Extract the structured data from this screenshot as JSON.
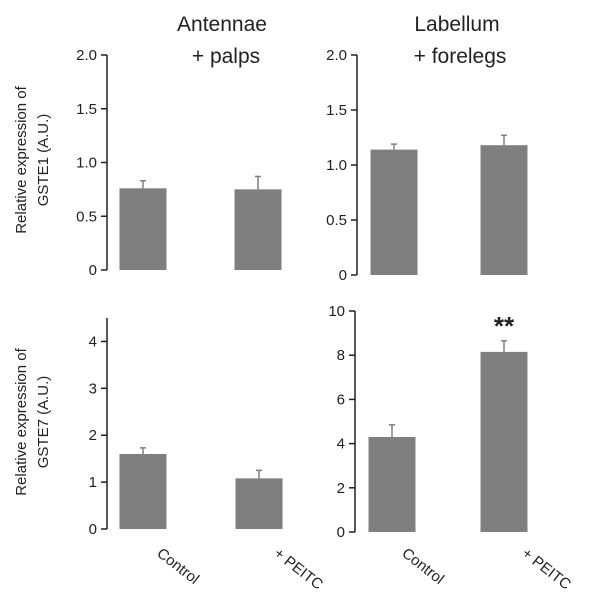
{
  "column_titles": [
    {
      "line1": "Antennae",
      "line2": "+ palps"
    },
    {
      "line1": "Labellum",
      "line2": "+ forelegs"
    }
  ],
  "row_ylabels": [
    {
      "line1": "Relative expression of",
      "line2": "GSTE1 (A.U.)"
    },
    {
      "line1": "Relative expression of",
      "line2": "GSTE7 (A.U.)"
    }
  ],
  "x_categories": [
    "Control",
    "+ PEITC"
  ],
  "colors": {
    "bar": "#7f7f7f",
    "axis": "#222222"
  },
  "chart_data": [
    {
      "type": "bar",
      "panel": "GSTE1 antennae + palps",
      "categories": [
        "Control",
        "+ PEITC"
      ],
      "values": [
        0.76,
        0.75
      ],
      "errors": [
        0.07,
        0.12
      ],
      "ylim": [
        0,
        2.0
      ],
      "yticks": [
        "0",
        "0.5",
        "1.0",
        "1.5",
        "2.0"
      ],
      "annotations": [
        "",
        ""
      ]
    },
    {
      "type": "bar",
      "panel": "GSTE1 labellum + forelegs",
      "categories": [
        "Control",
        "+ PEITC"
      ],
      "values": [
        1.14,
        1.18
      ],
      "errors": [
        0.05,
        0.09
      ],
      "ylim": [
        0,
        2.0
      ],
      "yticks": [
        "0",
        "0.5",
        "1.0",
        "1.5",
        "2.0"
      ],
      "annotations": [
        "",
        ""
      ]
    },
    {
      "type": "bar",
      "panel": "GSTE7 antennae + palps",
      "categories": [
        "Control",
        "+ PEITC"
      ],
      "values": [
        1.6,
        1.08
      ],
      "errors": [
        0.13,
        0.17
      ],
      "ylim": [
        0,
        4.5
      ],
      "yticks": [
        "0",
        "1",
        "2",
        "3",
        "4"
      ],
      "annotations": [
        "",
        ""
      ]
    },
    {
      "type": "bar",
      "panel": "GSTE7 labellum + forelegs",
      "categories": [
        "Control",
        "+ PEITC"
      ],
      "values": [
        4.3,
        8.15
      ],
      "errors": [
        0.55,
        0.5
      ],
      "ylim": [
        0,
        10
      ],
      "yticks": [
        "0",
        "2",
        "4",
        "6",
        "8",
        "10"
      ],
      "annotations": [
        "",
        "**"
      ]
    }
  ]
}
